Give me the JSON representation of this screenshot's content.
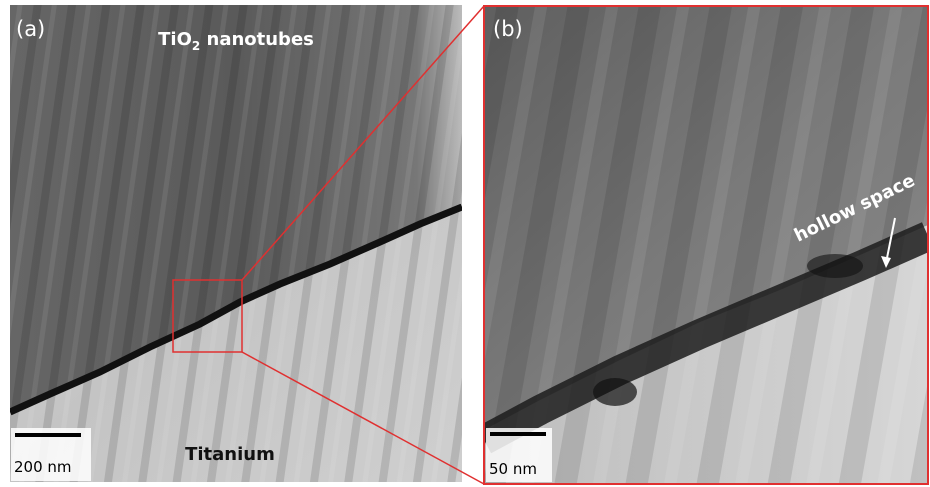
{
  "panel_a": {
    "label": "(a)",
    "top_label": [
      "TiO",
      "2",
      " nanotubes"
    ],
    "bottom_label": "Titanium",
    "scale_bar": "200 nm"
  },
  "panel_b": {
    "label": "(b)",
    "annotation": "hollow space",
    "scale_bar": "50 nm"
  }
}
